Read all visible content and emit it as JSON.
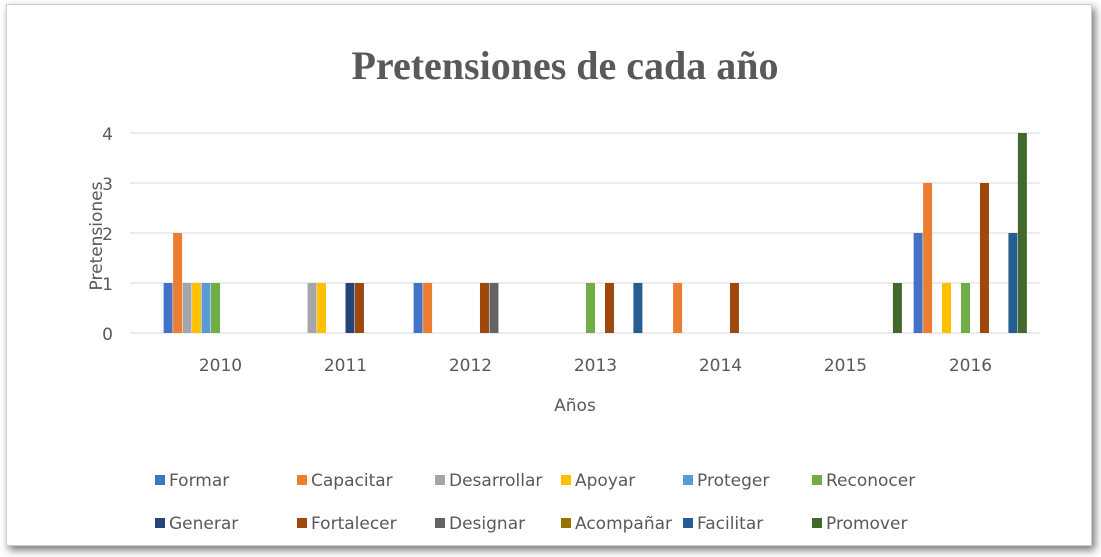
{
  "chart_data": {
    "type": "bar",
    "title": "Pretensiones de cada año",
    "x_label": "Años",
    "y_label": "Pretensiones",
    "categories": [
      "2010",
      "2011",
      "2012",
      "2013",
      "2014",
      "2015",
      "2016"
    ],
    "series": [
      {
        "name": "Formar",
        "color": "#4472c4",
        "values": [
          1,
          0,
          1,
          0,
          0,
          0,
          2
        ]
      },
      {
        "name": "Capacitar",
        "color": "#ed7d31",
        "values": [
          2,
          0,
          1,
          0,
          1,
          0,
          3
        ]
      },
      {
        "name": "Desarrollar",
        "color": "#a5a5a5",
        "values": [
          1,
          1,
          0,
          0,
          0,
          0,
          0
        ]
      },
      {
        "name": "Apoyar",
        "color": "#ffc000",
        "values": [
          1,
          1,
          0,
          0,
          0,
          0,
          1
        ]
      },
      {
        "name": "Proteger",
        "color": "#5b9bd5",
        "values": [
          1,
          0,
          0,
          0,
          0,
          0,
          0
        ]
      },
      {
        "name": "Reconocer",
        "color": "#70ad47",
        "values": [
          1,
          0,
          0,
          1,
          0,
          0,
          1
        ]
      },
      {
        "name": "Generar",
        "color": "#264478",
        "values": [
          0,
          1,
          0,
          0,
          0,
          0,
          0
        ]
      },
      {
        "name": "Fortalecer",
        "color": "#9e480e",
        "values": [
          0,
          1,
          1,
          1,
          1,
          0,
          3
        ]
      },
      {
        "name": "Designar",
        "color": "#636363",
        "values": [
          0,
          0,
          1,
          0,
          0,
          0,
          0
        ]
      },
      {
        "name": "Acompañar",
        "color": "#997300",
        "values": [
          0,
          0,
          0,
          0,
          0,
          0,
          0
        ]
      },
      {
        "name": "Facilitar",
        "color": "#255e91",
        "values": [
          0,
          0,
          0,
          1,
          0,
          0,
          2
        ]
      },
      {
        "name": "Promover",
        "color": "#43682b",
        "values": [
          0,
          0,
          0,
          0,
          0,
          1,
          4
        ]
      }
    ],
    "ylim": [
      0,
      4
    ],
    "yticks": [
      0,
      1,
      2,
      3,
      4
    ],
    "grid": true,
    "legend": "bottom"
  }
}
